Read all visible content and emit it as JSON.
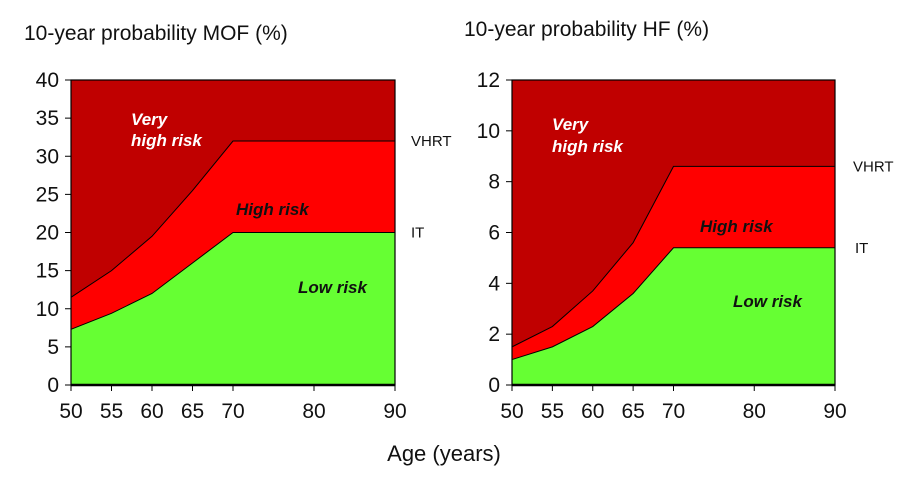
{
  "figure": {
    "shared_xlabel": "Age (years)"
  },
  "colors": {
    "very_high": "#C00000",
    "high": "#FF0000",
    "low": "#66FF33",
    "line": "#000000",
    "very_high_label": "#FFFFFF",
    "other_label": "#111111"
  },
  "chart_data": [
    {
      "type": "area",
      "title": "10-year probability MOF (%)",
      "xlabel": "Age (years)",
      "ylabel": "",
      "xlim": [
        50,
        90
      ],
      "ylim": [
        0,
        40
      ],
      "xticks": [
        50,
        55,
        60,
        65,
        70,
        80,
        90
      ],
      "yticks": [
        0,
        5,
        10,
        15,
        20,
        25,
        30,
        35,
        40
      ],
      "x": [
        50,
        55,
        60,
        65,
        70,
        90
      ],
      "series": [
        {
          "name": "Low risk",
          "values": [
            7.3,
            9.4,
            12.0,
            16.0,
            20.0,
            20.0
          ]
        },
        {
          "name": "High risk",
          "values": [
            11.5,
            15.0,
            19.5,
            25.5,
            32.0,
            32.0
          ]
        },
        {
          "name": "Very high risk",
          "values": [
            40,
            40,
            40,
            40,
            40,
            40
          ]
        }
      ],
      "threshold_labels": [
        {
          "text": "VHRT",
          "value": 32.0
        },
        {
          "text": "IT",
          "value": 20.0
        }
      ],
      "region_labels": {
        "very_high": [
          "Very",
          "high risk"
        ],
        "high": "High risk",
        "low": "Low risk"
      }
    },
    {
      "type": "area",
      "title": "10-year probability HF (%)",
      "xlabel": "Age (years)",
      "ylabel": "",
      "xlim": [
        50,
        90
      ],
      "ylim": [
        0,
        12
      ],
      "xticks": [
        50,
        55,
        60,
        65,
        70,
        80,
        90
      ],
      "yticks": [
        0,
        2,
        4,
        6,
        8,
        10,
        12
      ],
      "x": [
        50,
        55,
        60,
        65,
        70,
        90
      ],
      "series": [
        {
          "name": "Low risk",
          "values": [
            1.0,
            1.5,
            2.3,
            3.6,
            5.4,
            5.4
          ]
        },
        {
          "name": "High risk",
          "values": [
            1.5,
            2.3,
            3.7,
            5.6,
            8.6,
            8.6
          ]
        },
        {
          "name": "Very high risk",
          "values": [
            12,
            12,
            12,
            12,
            12,
            12
          ]
        }
      ],
      "threshold_labels": [
        {
          "text": "VHRT",
          "value": 8.6
        },
        {
          "text": "IT",
          "value": 5.4
        }
      ],
      "region_labels": {
        "very_high": [
          "Very",
          "high risk"
        ],
        "high": "High risk",
        "low": "Low risk"
      }
    }
  ]
}
